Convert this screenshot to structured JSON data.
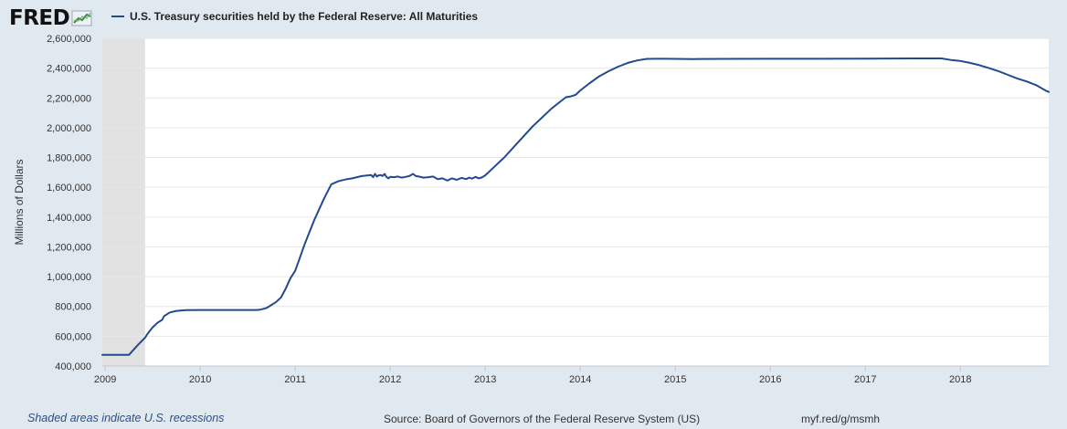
{
  "header": {
    "logo_text": "FRED"
  },
  "chart_data": {
    "type": "line",
    "title": "U.S. Treasury securities held by the Federal Reserve: All Maturities",
    "ylabel": "Millions of Dollars",
    "xlabel": "",
    "xlim": [
      2008.97,
      2018.93
    ],
    "ylim": [
      400000,
      2600000
    ],
    "yticks": [
      400000,
      600000,
      800000,
      1000000,
      1200000,
      1400000,
      1600000,
      1800000,
      2000000,
      2200000,
      2400000,
      2600000
    ],
    "ytick_labels": [
      "400,000",
      "600,000",
      "800,000",
      "1,000,000",
      "1,200,000",
      "1,400,000",
      "1,600,000",
      "1,800,000",
      "2,000,000",
      "2,200,000",
      "2,400,000",
      "2,600,000"
    ],
    "xticks": [
      2009,
      2010,
      2011,
      2012,
      2013,
      2014,
      2015,
      2016,
      2017,
      2018
    ],
    "xtick_labels": [
      "2009",
      "2010",
      "2011",
      "2012",
      "2013",
      "2014",
      "2015",
      "2016",
      "2017",
      "2018"
    ],
    "grid": true,
    "recession": {
      "start": 2008.97,
      "end": 2009.42
    },
    "series": [
      {
        "name": "U.S. Treasury securities held by the Federal Reserve: All Maturities",
        "color": "#224a8f",
        "x": [
          2008.97,
          2009.0,
          2009.1,
          2009.2,
          2009.25,
          2009.3,
          2009.35,
          2009.42,
          2009.45,
          2009.5,
          2009.55,
          2009.6,
          2009.62,
          2009.68,
          2009.75,
          2009.85,
          2010.0,
          2010.2,
          2010.4,
          2010.6,
          2010.63,
          2010.7,
          2010.75,
          2010.8,
          2010.85,
          2010.9,
          2010.95,
          2011.0,
          2011.05,
          2011.1,
          2011.2,
          2011.3,
          2011.38,
          2011.45,
          2011.5,
          2011.55,
          2011.6,
          2011.7,
          2011.8,
          2011.82,
          2011.84,
          2011.86,
          2011.88,
          2011.9,
          2011.92,
          2011.94,
          2011.96,
          2011.98,
          2012.0,
          2012.04,
          2012.08,
          2012.12,
          2012.16,
          2012.2,
          2012.24,
          2012.27,
          2012.3,
          2012.35,
          2012.4,
          2012.45,
          2012.5,
          2012.55,
          2012.6,
          2012.65,
          2012.7,
          2012.75,
          2012.8,
          2012.83,
          2012.86,
          2012.9,
          2012.93,
          2012.96,
          2013.0,
          2013.1,
          2013.2,
          2013.3,
          2013.4,
          2013.5,
          2013.6,
          2013.7,
          2013.8,
          2013.85,
          2013.9,
          2013.95,
          2014.0,
          2014.1,
          2014.2,
          2014.3,
          2014.4,
          2014.5,
          2014.6,
          2014.7,
          2014.8,
          2014.9,
          2015.0,
          2015.2,
          2015.5,
          2016.0,
          2016.5,
          2017.0,
          2017.5,
          2017.8,
          2017.9,
          2018.0,
          2018.1,
          2018.2,
          2018.3,
          2018.4,
          2018.5,
          2018.6,
          2018.7,
          2018.8,
          2018.9,
          2018.93
        ],
        "values": [
          475000,
          475000,
          475000,
          475000,
          475000,
          510000,
          545000,
          590000,
          620000,
          660000,
          690000,
          710000,
          735000,
          760000,
          770000,
          775000,
          776000,
          776000,
          776000,
          776000,
          778000,
          790000,
          810000,
          830000,
          860000,
          920000,
          990000,
          1040000,
          1130000,
          1220000,
          1380000,
          1520000,
          1620000,
          1640000,
          1648000,
          1655000,
          1660000,
          1675000,
          1682000,
          1668000,
          1690000,
          1672000,
          1680000,
          1682000,
          1675000,
          1690000,
          1670000,
          1660000,
          1670000,
          1668000,
          1672000,
          1665000,
          1670000,
          1675000,
          1690000,
          1675000,
          1672000,
          1665000,
          1668000,
          1672000,
          1655000,
          1660000,
          1645000,
          1660000,
          1650000,
          1663000,
          1655000,
          1665000,
          1658000,
          1670000,
          1660000,
          1665000,
          1680000,
          1740000,
          1800000,
          1870000,
          1940000,
          2010000,
          2070000,
          2130000,
          2180000,
          2205000,
          2210000,
          2220000,
          2250000,
          2300000,
          2345000,
          2380000,
          2410000,
          2435000,
          2452000,
          2462000,
          2463000,
          2463000,
          2462000,
          2461000,
          2462000,
          2463000,
          2463000,
          2464000,
          2465000,
          2465000,
          2455000,
          2448000,
          2435000,
          2420000,
          2400000,
          2380000,
          2355000,
          2330000,
          2310000,
          2285000,
          2248000,
          2240000
        ]
      }
    ]
  },
  "footer": {
    "recession_note": "Shaded areas indicate U.S. recessions",
    "source": "Source: Board of Governors of the Federal Reserve System (US)",
    "url": "myf.red/g/msmh"
  }
}
